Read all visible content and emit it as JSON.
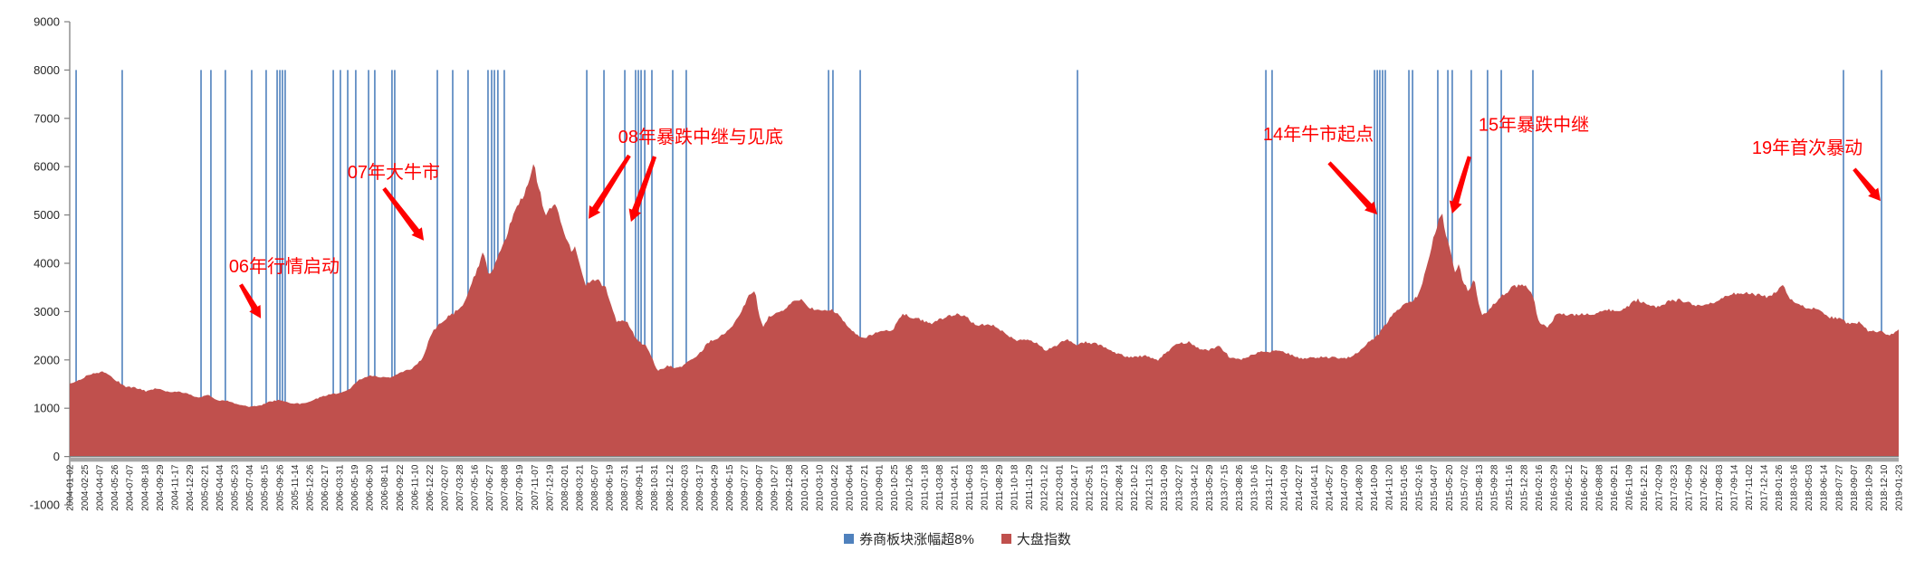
{
  "chart_data": {
    "type": "area",
    "title": "",
    "grid": false,
    "legend_position": "bottom-center",
    "y_axis": {
      "min": -1000,
      "max": 9000,
      "tick_step": 1000,
      "ticks": [
        9000,
        8000,
        7000,
        6000,
        5000,
        4000,
        3000,
        2000,
        1000,
        0,
        -1000
      ]
    },
    "x_axis": {
      "labels": [
        "2004-01-02",
        "2004-02-25",
        "2004-04-07",
        "2004-05-26",
        "2004-07-07",
        "2004-08-18",
        "2004-09-29",
        "2004-11-17",
        "2004-12-29",
        "2005-02-21",
        "2005-04-04",
        "2005-05-23",
        "2005-07-04",
        "2005-08-15",
        "2005-09-26",
        "2005-11-14",
        "2005-12-26",
        "2006-02-17",
        "2006-03-31",
        "2006-05-19",
        "2006-06-30",
        "2006-08-11",
        "2006-09-22",
        "2006-11-10",
        "2006-12-22",
        "2007-02-07",
        "2007-03-28",
        "2007-05-16",
        "2007-06-27",
        "2007-08-08",
        "2007-09-19",
        "2007-11-07",
        "2007-12-19",
        "2008-02-01",
        "2008-03-21",
        "2008-05-07",
        "2008-06-19",
        "2008-07-31",
        "2008-09-11",
        "2008-10-31",
        "2008-12-12",
        "2009-02-03",
        "2009-03-17",
        "2009-04-29",
        "2009-06-15",
        "2009-07-27",
        "2009-09-07",
        "2009-10-27",
        "2009-12-08",
        "2010-01-20",
        "2010-03-10",
        "2010-04-22",
        "2010-06-04",
        "2010-07-21",
        "2010-09-01",
        "2010-10-25",
        "2010-12-06",
        "2011-01-18",
        "2011-03-08",
        "2011-04-21",
        "2011-06-03",
        "2011-07-18",
        "2011-08-29",
        "2011-10-18",
        "2011-11-29",
        "2012-01-12",
        "2012-03-01",
        "2012-04-17",
        "2012-05-31",
        "2012-07-13",
        "2012-08-24",
        "2012-10-12",
        "2012-11-23",
        "2013-01-09",
        "2013-02-27",
        "2013-04-12",
        "2013-05-29",
        "2013-07-15",
        "2013-08-26",
        "2013-10-16",
        "2013-11-27",
        "2014-01-09",
        "2014-02-27",
        "2014-04-11",
        "2014-05-27",
        "2014-07-09",
        "2014-08-20",
        "2014-10-09",
        "2014-11-20",
        "2015-01-05",
        "2015-02-16",
        "2015-04-07",
        "2015-05-20",
        "2015-07-02",
        "2015-08-13",
        "2015-09-28",
        "2015-11-16",
        "2015-12-28",
        "2016-02-16",
        "2016-03-29",
        "2016-05-12",
        "2016-06-27",
        "2016-08-08",
        "2016-09-21",
        "2016-11-09",
        "2016-12-21",
        "2017-02-09",
        "2017-03-23",
        "2017-05-09",
        "2017-06-22",
        "2017-08-03",
        "2017-09-14",
        "2017-11-02",
        "2017-12-14",
        "2018-01-26",
        "2018-03-16",
        "2018-05-03",
        "2018-06-14",
        "2018-07-27",
        "2018-09-07",
        "2018-10-29",
        "2018-12-10",
        "2019-01-23"
      ]
    },
    "legend": {
      "items": [
        {
          "label": "券商板块涨幅超8%",
          "color": "#4F81BD",
          "shape": "square"
        },
        {
          "label": "大盘指数",
          "color": "#C0504D",
          "shape": "square"
        }
      ]
    },
    "series": [
      {
        "name": "券商板块涨幅超8%",
        "type": "event-vlines",
        "color": "#4F81BD",
        "line_bottom_value": 0,
        "line_top_value": 8000,
        "positions_frac": [
          0.0035,
          0.0287,
          0.0718,
          0.0772,
          0.0851,
          0.0995,
          0.1074,
          0.1134,
          0.1149,
          0.1163,
          0.1178,
          0.1441,
          0.148,
          0.152,
          0.1564,
          0.1634,
          0.1668,
          0.1762,
          0.1777,
          0.201,
          0.2094,
          0.2178,
          0.2287,
          0.2307,
          0.2322,
          0.2341,
          0.2376,
          0.2827,
          0.2921,
          0.3035,
          0.3094,
          0.3109,
          0.3124,
          0.3144,
          0.3183,
          0.3297,
          0.3371,
          0.4149,
          0.4173,
          0.4322,
          0.551,
          0.654,
          0.6574,
          0.7134,
          0.7149,
          0.7163,
          0.7178,
          0.7193,
          0.7322,
          0.7342,
          0.748,
          0.7535,
          0.7559,
          0.7663,
          0.7752,
          0.7827,
          0.8,
          0.9698,
          0.9906
        ]
      },
      {
        "name": "大盘指数",
        "type": "area",
        "color": "#C0504D",
        "points": [
          [
            0.0,
            1500
          ],
          [
            0.0028,
            1520
          ],
          [
            0.0084,
            1640
          ],
          [
            0.014,
            1740
          ],
          [
            0.0196,
            1760
          ],
          [
            0.0252,
            1590
          ],
          [
            0.0307,
            1440
          ],
          [
            0.0363,
            1410
          ],
          [
            0.0419,
            1350
          ],
          [
            0.0475,
            1420
          ],
          [
            0.0531,
            1350
          ],
          [
            0.0587,
            1340
          ],
          [
            0.0643,
            1290
          ],
          [
            0.0699,
            1220
          ],
          [
            0.0755,
            1290
          ],
          [
            0.081,
            1170
          ],
          [
            0.0866,
            1150
          ],
          [
            0.0922,
            1070
          ],
          [
            0.0978,
            1030
          ],
          [
            0.1034,
            1050
          ],
          [
            0.109,
            1140
          ],
          [
            0.1146,
            1170
          ],
          [
            0.1202,
            1100
          ],
          [
            0.1257,
            1090
          ],
          [
            0.1313,
            1140
          ],
          [
            0.1369,
            1240
          ],
          [
            0.1425,
            1290
          ],
          [
            0.1481,
            1300
          ],
          [
            0.1537,
            1420
          ],
          [
            0.1593,
            1620
          ],
          [
            0.1648,
            1680
          ],
          [
            0.1704,
            1650
          ],
          [
            0.176,
            1630
          ],
          [
            0.1816,
            1730
          ],
          [
            0.1872,
            1830
          ],
          [
            0.1928,
            2050
          ],
          [
            0.1984,
            2590
          ],
          [
            0.204,
            2790
          ],
          [
            0.2096,
            2950
          ],
          [
            0.2152,
            3150
          ],
          [
            0.2207,
            3700
          ],
          [
            0.2263,
            4250
          ],
          [
            0.2292,
            3720
          ],
          [
            0.2319,
            3900
          ],
          [
            0.2375,
            4400
          ],
          [
            0.2431,
            5100
          ],
          [
            0.2487,
            5480
          ],
          [
            0.2535,
            6080
          ],
          [
            0.2599,
            4950
          ],
          [
            0.2655,
            5200
          ],
          [
            0.271,
            4550
          ],
          [
            0.274,
            4300
          ],
          [
            0.2766,
            4350
          ],
          [
            0.2822,
            3550
          ],
          [
            0.2878,
            3650
          ],
          [
            0.2934,
            3450
          ],
          [
            0.299,
            2800
          ],
          [
            0.3045,
            2830
          ],
          [
            0.3101,
            2420
          ],
          [
            0.3157,
            2250
          ],
          [
            0.3213,
            1760
          ],
          [
            0.3269,
            1880
          ],
          [
            0.3325,
            1840
          ],
          [
            0.3381,
            1960
          ],
          [
            0.3436,
            2080
          ],
          [
            0.3492,
            2350
          ],
          [
            0.3548,
            2480
          ],
          [
            0.3604,
            2620
          ],
          [
            0.366,
            2940
          ],
          [
            0.3716,
            3320
          ],
          [
            0.3746,
            3440
          ],
          [
            0.3772,
            2850
          ],
          [
            0.379,
            2680
          ],
          [
            0.3827,
            2920
          ],
          [
            0.3883,
            3000
          ],
          [
            0.3939,
            3160
          ],
          [
            0.3995,
            3250
          ],
          [
            0.4051,
            3040
          ],
          [
            0.4106,
            3030
          ],
          [
            0.4162,
            3070
          ],
          [
            0.4218,
            2890
          ],
          [
            0.4274,
            2600
          ],
          [
            0.433,
            2420
          ],
          [
            0.4386,
            2530
          ],
          [
            0.4441,
            2640
          ],
          [
            0.4497,
            2620
          ],
          [
            0.4553,
            2940
          ],
          [
            0.4609,
            2860
          ],
          [
            0.4665,
            2810
          ],
          [
            0.4721,
            2780
          ],
          [
            0.4777,
            2890
          ],
          [
            0.4832,
            2930
          ],
          [
            0.4888,
            2910
          ],
          [
            0.4944,
            2740
          ],
          [
            0.5,
            2740
          ],
          [
            0.5056,
            2720
          ],
          [
            0.5112,
            2550
          ],
          [
            0.5167,
            2390
          ],
          [
            0.5223,
            2420
          ],
          [
            0.5279,
            2380
          ],
          [
            0.5335,
            2220
          ],
          [
            0.5391,
            2270
          ],
          [
            0.5447,
            2410
          ],
          [
            0.5502,
            2300
          ],
          [
            0.5558,
            2380
          ],
          [
            0.5614,
            2350
          ],
          [
            0.567,
            2230
          ],
          [
            0.5726,
            2120
          ],
          [
            0.5782,
            2060
          ],
          [
            0.5838,
            2080
          ],
          [
            0.5893,
            2100
          ],
          [
            0.5949,
            1990
          ],
          [
            0.6005,
            2170
          ],
          [
            0.6061,
            2330
          ],
          [
            0.6117,
            2380
          ],
          [
            0.6172,
            2250
          ],
          [
            0.6228,
            2200
          ],
          [
            0.6284,
            2280
          ],
          [
            0.634,
            2050
          ],
          [
            0.6396,
            2010
          ],
          [
            0.6452,
            2090
          ],
          [
            0.6507,
            2180
          ],
          [
            0.6563,
            2150
          ],
          [
            0.6619,
            2200
          ],
          [
            0.6675,
            2120
          ],
          [
            0.673,
            2040
          ],
          [
            0.679,
            2050
          ],
          [
            0.684,
            2040
          ],
          [
            0.69,
            2040
          ],
          [
            0.695,
            2030
          ],
          [
            0.7,
            2070
          ],
          [
            0.7045,
            2180
          ],
          [
            0.707,
            2220
          ],
          [
            0.7095,
            2330
          ],
          [
            0.712,
            2400
          ],
          [
            0.7155,
            2500
          ],
          [
            0.719,
            2700
          ],
          [
            0.7225,
            2900
          ],
          [
            0.726,
            3050
          ],
          [
            0.7295,
            3150
          ],
          [
            0.733,
            3220
          ],
          [
            0.737,
            3300
          ],
          [
            0.741,
            3750
          ],
          [
            0.745,
            4400
          ],
          [
            0.748,
            4800
          ],
          [
            0.75,
            5090
          ],
          [
            0.7525,
            4600
          ],
          [
            0.755,
            4300
          ],
          [
            0.7575,
            3800
          ],
          [
            0.7595,
            4050
          ],
          [
            0.762,
            3600
          ],
          [
            0.765,
            3400
          ],
          [
            0.768,
            3650
          ],
          [
            0.7705,
            3100
          ],
          [
            0.7725,
            2880
          ],
          [
            0.776,
            3050
          ],
          [
            0.78,
            3220
          ],
          [
            0.784,
            3380
          ],
          [
            0.789,
            3520
          ],
          [
            0.795,
            3540
          ],
          [
            0.8,
            3300
          ],
          [
            0.8035,
            2740
          ],
          [
            0.808,
            2690
          ],
          [
            0.8135,
            3000
          ],
          [
            0.819,
            2950
          ],
          [
            0.8245,
            2920
          ],
          [
            0.83,
            2930
          ],
          [
            0.8355,
            2980
          ],
          [
            0.841,
            3070
          ],
          [
            0.8465,
            3010
          ],
          [
            0.852,
            3100
          ],
          [
            0.8575,
            3230
          ],
          [
            0.863,
            3120
          ],
          [
            0.8685,
            3130
          ],
          [
            0.874,
            3220
          ],
          [
            0.8795,
            3230
          ],
          [
            0.885,
            3170
          ],
          [
            0.8905,
            3110
          ],
          [
            0.896,
            3170
          ],
          [
            0.9015,
            3240
          ],
          [
            0.907,
            3340
          ],
          [
            0.9125,
            3360
          ],
          [
            0.918,
            3380
          ],
          [
            0.9235,
            3360
          ],
          [
            0.929,
            3310
          ],
          [
            0.9345,
            3480
          ],
          [
            0.937,
            3540
          ],
          [
            0.94,
            3260
          ],
          [
            0.9455,
            3160
          ],
          [
            0.951,
            3080
          ],
          [
            0.9565,
            3090
          ],
          [
            0.962,
            2880
          ],
          [
            0.9675,
            2840
          ],
          [
            0.973,
            2730
          ],
          [
            0.9785,
            2790
          ],
          [
            0.984,
            2600
          ],
          [
            0.9895,
            2590
          ],
          [
            0.995,
            2500
          ],
          [
            0.9985,
            2560
          ],
          [
            1.0,
            2620
          ]
        ]
      }
    ],
    "annotations": [
      {
        "text": "06年行情启动",
        "color": "#FF0000",
        "text_pos": {
          "fx": 0.1173,
          "value": 3940
        },
        "arrows": [
          {
            "from": {
              "fx": 0.0935,
              "value": 3560
            },
            "to": {
              "fx": 0.1045,
              "value": 2860
            }
          }
        ]
      },
      {
        "text": "07年大牛市",
        "color": "#FF0000",
        "text_pos": {
          "fx": 0.1772,
          "value": 5890
        },
        "arrows": [
          {
            "from": {
              "fx": 0.1718,
              "value": 5550
            },
            "to": {
              "fx": 0.1936,
              "value": 4470
            }
          }
        ]
      },
      {
        "text": "08年暴跌中继与见底",
        "color": "#FF0000",
        "text_pos": {
          "fx": 0.345,
          "value": 6620
        },
        "arrows": [
          {
            "from": {
              "fx": 0.3059,
              "value": 6230
            },
            "to": {
              "fx": 0.2837,
              "value": 4920
            }
          },
          {
            "from": {
              "fx": 0.3198,
              "value": 6210
            },
            "to": {
              "fx": 0.3069,
              "value": 4860
            }
          }
        ]
      },
      {
        "text": "14年牛市起点",
        "color": "#FF0000",
        "text_pos": {
          "fx": 0.6827,
          "value": 6680
        },
        "arrows": [
          {
            "from": {
              "fx": 0.6886,
              "value": 6080
            },
            "to": {
              "fx": 0.7149,
              "value": 5010
            }
          }
        ]
      },
      {
        "text": "15年暴跌中继",
        "color": "#FF0000",
        "text_pos": {
          "fx": 0.8005,
          "value": 6870
        },
        "arrows": [
          {
            "from": {
              "fx": 0.7653,
              "value": 6210
            },
            "to": {
              "fx": 0.7559,
              "value": 5030
            }
          }
        ]
      },
      {
        "text": "19年首次暴动",
        "color": "#FF0000",
        "text_pos": {
          "fx": 0.95,
          "value": 6400
        },
        "arrows": [
          {
            "from": {
              "fx": 0.9757,
              "value": 5950
            },
            "to": {
              "fx": 0.9901,
              "value": 5290
            }
          }
        ]
      }
    ],
    "axis_colors": {
      "axis_line": "#808080",
      "axis_band": "#A6A6A6",
      "tick_text": "#262626"
    }
  }
}
